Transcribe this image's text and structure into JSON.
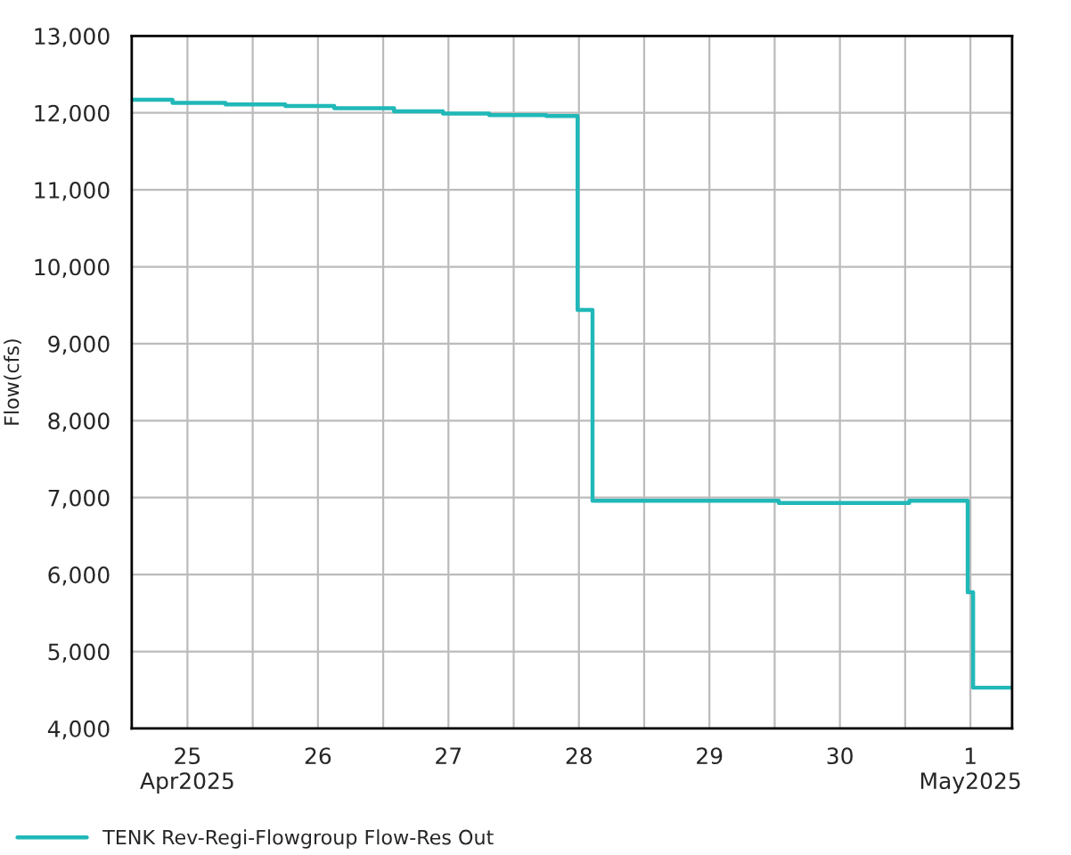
{
  "chart_data": {
    "type": "step",
    "ylabel": "Flow(cfs)",
    "series": [
      {
        "name": "TENK Rev-Regi-Flowgroup Flow-Res Out",
        "color": "#20b8b8",
        "x": [
          "2025-04-25T01:45",
          "2025-04-25T09:15",
          "2025-04-25T19:00",
          "2025-04-26T06:00",
          "2025-04-26T15:00",
          "2025-04-27T02:00",
          "2025-04-27T11:00",
          "2025-04-27T19:30",
          "2025-04-28T06:00",
          "2025-04-28T11:45",
          "2025-04-28T14:30",
          "2025-04-30T00:45",
          "2025-05-01T00:45",
          "2025-05-01T11:30",
          "2025-05-01T12:30",
          "2025-05-01T19:40"
        ],
        "values": [
          12170,
          12130,
          12110,
          12090,
          12060,
          12020,
          11990,
          11970,
          11960,
          9440,
          6960,
          6930,
          6960,
          5770,
          4530,
          4530
        ]
      }
    ],
    "xlim": [
      "2025-04-25T01:45",
      "2025-05-01T19:40"
    ],
    "xticks": [
      {
        "value": "2025-04-25T12:00",
        "label": "25\nApr2025"
      },
      {
        "value": "2025-04-26T00:00",
        "label": null
      },
      {
        "value": "2025-04-26T12:00",
        "label": "26"
      },
      {
        "value": "2025-04-27T00:00",
        "label": null
      },
      {
        "value": "2025-04-27T12:00",
        "label": "27"
      },
      {
        "value": "2025-04-28T00:00",
        "label": null
      },
      {
        "value": "2025-04-28T12:00",
        "label": "28"
      },
      {
        "value": "2025-04-29T00:00",
        "label": null
      },
      {
        "value": "2025-04-29T12:00",
        "label": "29"
      },
      {
        "value": "2025-04-30T00:00",
        "label": null
      },
      {
        "value": "2025-04-30T12:00",
        "label": "30"
      },
      {
        "value": "2025-05-01T00:00",
        "label": null
      },
      {
        "value": "2025-05-01T12:00",
        "label": "1\nMay2025"
      }
    ],
    "ylim": [
      4000,
      13000
    ],
    "yticks": [
      {
        "value": 4000,
        "label": "4,000"
      },
      {
        "value": 5000,
        "label": "5,000"
      },
      {
        "value": 6000,
        "label": "6,000"
      },
      {
        "value": 7000,
        "label": "7,000"
      },
      {
        "value": 8000,
        "label": "8,000"
      },
      {
        "value": 9000,
        "label": "9,000"
      },
      {
        "value": 10000,
        "label": "10,000"
      },
      {
        "value": 11000,
        "label": "11,000"
      },
      {
        "value": 12000,
        "label": "12,000"
      },
      {
        "value": 13000,
        "label": "13,000"
      }
    ],
    "grid": true,
    "legend": "bottom left",
    "marker": "none",
    "line_style": "solid"
  }
}
